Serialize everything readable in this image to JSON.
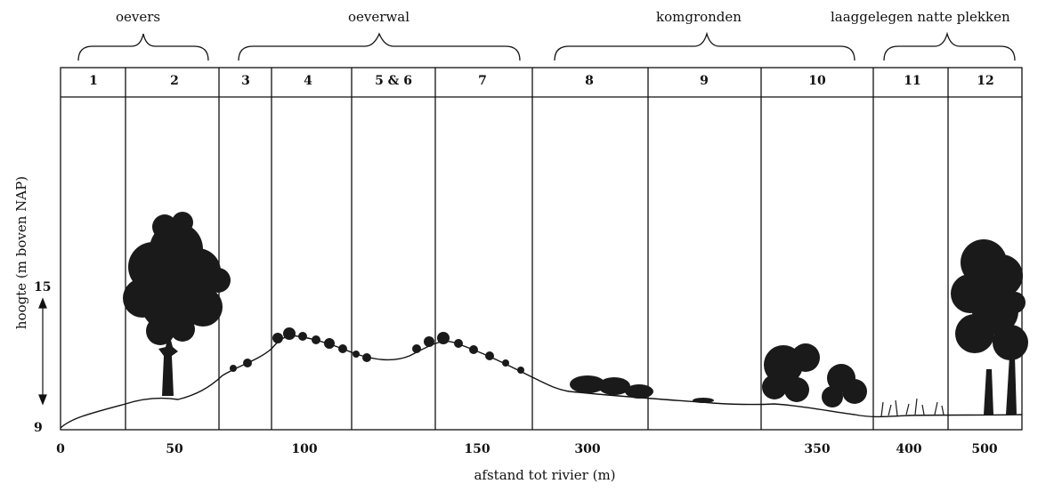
{
  "zones": [
    {
      "label": "oevers"
    },
    {
      "label": "oeverwal"
    },
    {
      "label": "komgronden"
    },
    {
      "label": "laaggelegen natte plekken"
    }
  ],
  "columns": [
    "1",
    "2",
    "3",
    "4",
    "5 & 6",
    "7",
    "8",
    "9",
    "10",
    "11",
    "12"
  ],
  "x_ticks": [
    "0",
    "50",
    "100",
    "150",
    "300",
    "350",
    "400",
    "500"
  ],
  "y_ticks": [
    "15",
    "9"
  ],
  "x_axis_label": "afstand tot rivier (m)",
  "y_axis_label": "hoogte (m boven NAP)",
  "colors": {
    "line": "#111111",
    "background": "#ffffff",
    "vegetation": "#1a1a1a"
  },
  "icons": [
    "tree-icon",
    "shrub-icon",
    "reed-icon",
    "up-down-arrow-icon"
  ]
}
